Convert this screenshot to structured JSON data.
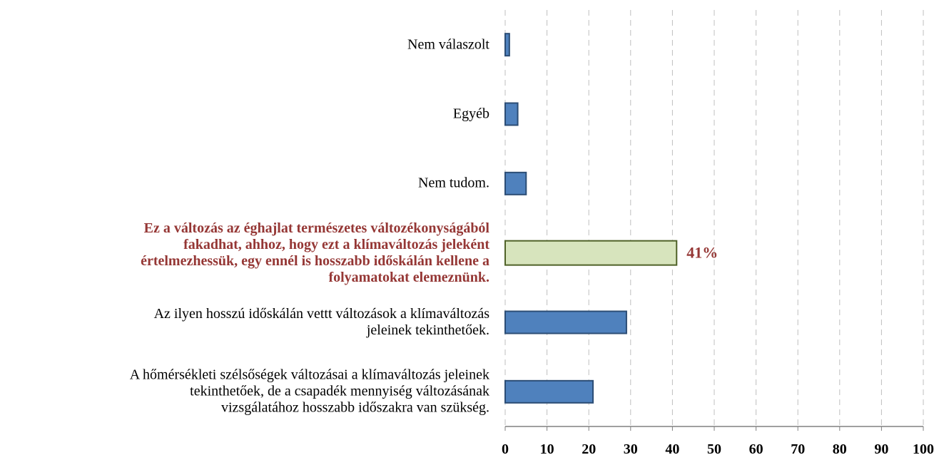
{
  "chart_data": {
    "type": "hbar",
    "categories": [
      "Nem válaszolt",
      "Egyéb",
      "Nem tudom.",
      "Ez a változás az éghajlat természetes változékonyságából\nfakadhat, ahhoz, hogy ezt a klímaváltozás jeleként\nértelmezhessük, egy ennél is hosszabb időskálán kellene a\nfolyamatokat elemeznünk.",
      "Az ilyen hosszú időskálán vettt változások a klímaváltozás\njeleinek tekinthetőek.",
      "A hőmérsékleti szélsőségek változásai a klímaváltozás jeleinek\ntekinthetőek, de a csapadék mennyiség változásának\nvizsgálatához hosszabb időszakra van szükség."
    ],
    "values": [
      1,
      3,
      5,
      41,
      29,
      21
    ],
    "value_labels": [
      null,
      null,
      null,
      "41%",
      null,
      null
    ],
    "colors": [
      "#4f81bd",
      "#4f81bd",
      "#4f81bd",
      "#d7e4bd",
      "#4f81bd",
      "#4f81bd"
    ],
    "label_color": "#953735",
    "xlim": [
      0,
      100
    ],
    "xticks": [
      0,
      10,
      20,
      30,
      40,
      50,
      60,
      70,
      80,
      90,
      100
    ],
    "grid": true
  }
}
